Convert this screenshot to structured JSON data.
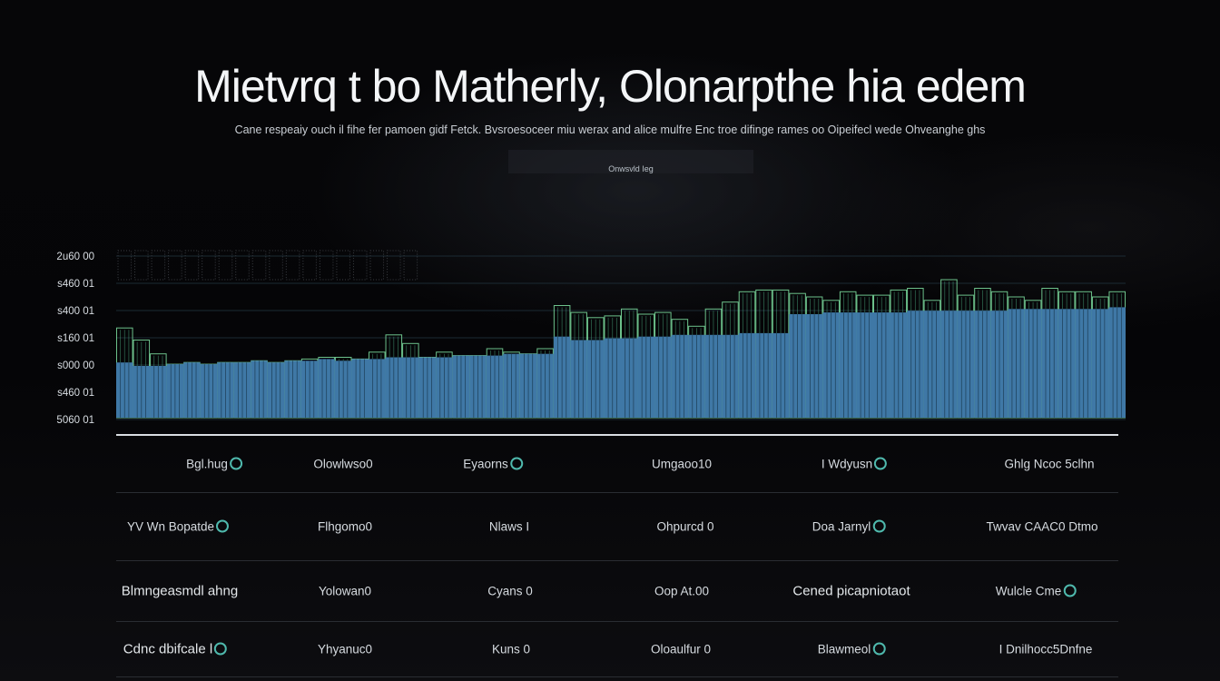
{
  "title": "Mietvrq t bo Matherly, Olonarpthe hia edem",
  "subtitle": "Cane respeaiy ouch il fihe fer pamoen gidf Fetck. Bvsroesoceer miu werax and alice mulfre Enc troe difinge rames oo Oipeifecl wede Ohveanghe ghs",
  "tag_label": "Onwsvld Ieg",
  "colors": {
    "background": "#050507",
    "bar_fill": "#3f78a6",
    "bar_outline": "#5fc48a",
    "upper_outline": "#7fe3a2",
    "accent": "#4fb9ad"
  },
  "chart_data": {
    "type": "bar",
    "title": "Mietvrq t bo Matherly, Olonarpthe hia edem",
    "y_tick_labels": [
      "2u60 00",
      "s460 01",
      "s400 01",
      "s160 01",
      "s000 00",
      "s460 01",
      "5060 01"
    ],
    "ylim": [
      0,
      100
    ],
    "grid": true,
    "bar_count": 60,
    "series": [
      {
        "values": [
          52,
          45,
          37,
          25,
          19,
          15,
          25,
          28,
          31,
          30,
          26,
          34,
          35,
          35,
          34,
          38,
          48,
          43,
          35,
          38,
          36,
          36,
          40,
          38,
          37,
          40,
          65,
          61,
          58,
          59,
          63,
          60,
          61,
          57,
          53,
          63,
          67,
          73,
          74,
          74,
          72,
          70,
          68,
          73,
          71,
          71,
          74,
          75,
          68,
          80,
          71,
          75,
          73,
          70,
          68,
          75,
          73,
          73,
          70,
          73
        ]
      },
      {
        "values": [
          32,
          30,
          30,
          31,
          32,
          31,
          32,
          32,
          33,
          32,
          33,
          33,
          34,
          33,
          34,
          34,
          35,
          35,
          35,
          35,
          36,
          36,
          36,
          37,
          37,
          37,
          47,
          45,
          45,
          46,
          46,
          47,
          47,
          48,
          48,
          48,
          48,
          49,
          49,
          49,
          60,
          60,
          61,
          61,
          61,
          61,
          61,
          62,
          62,
          62,
          62,
          62,
          62,
          63,
          63,
          63,
          63,
          63,
          63,
          64
        ]
      }
    ]
  },
  "table": {
    "rows": [
      [
        "Bgl.hug",
        "Olowlwso0",
        "Eyaorns",
        "Umgaoo10",
        "I Wdyusn",
        "Ghlg Ncoc 5clhn"
      ],
      [
        "YV Wn Bopatde",
        "Flhgomo0",
        "Nlaws I",
        "Ohpurcd 0",
        "Doa Jarnyl",
        "Twvav CAAC0 Dtmo"
      ],
      [
        "Blmngeasmdl ahng",
        "Yolowan0",
        "Cyans 0",
        "Oop At.00",
        "Cened picapniotaot",
        "Wulcle Cme"
      ],
      [
        "Cdnc dbifcale l",
        "Yhyanuc0",
        "Kuns 0",
        "Oloaulfur 0",
        "Blawmeol",
        "I Dnilhocc5Dnfne"
      ]
    ],
    "row_icons": [
      [
        true,
        false,
        true,
        false,
        true,
        false
      ],
      [
        true,
        false,
        false,
        false,
        true,
        false
      ],
      [
        false,
        false,
        false,
        false,
        false,
        true
      ],
      [
        true,
        false,
        false,
        false,
        true,
        false
      ]
    ]
  }
}
